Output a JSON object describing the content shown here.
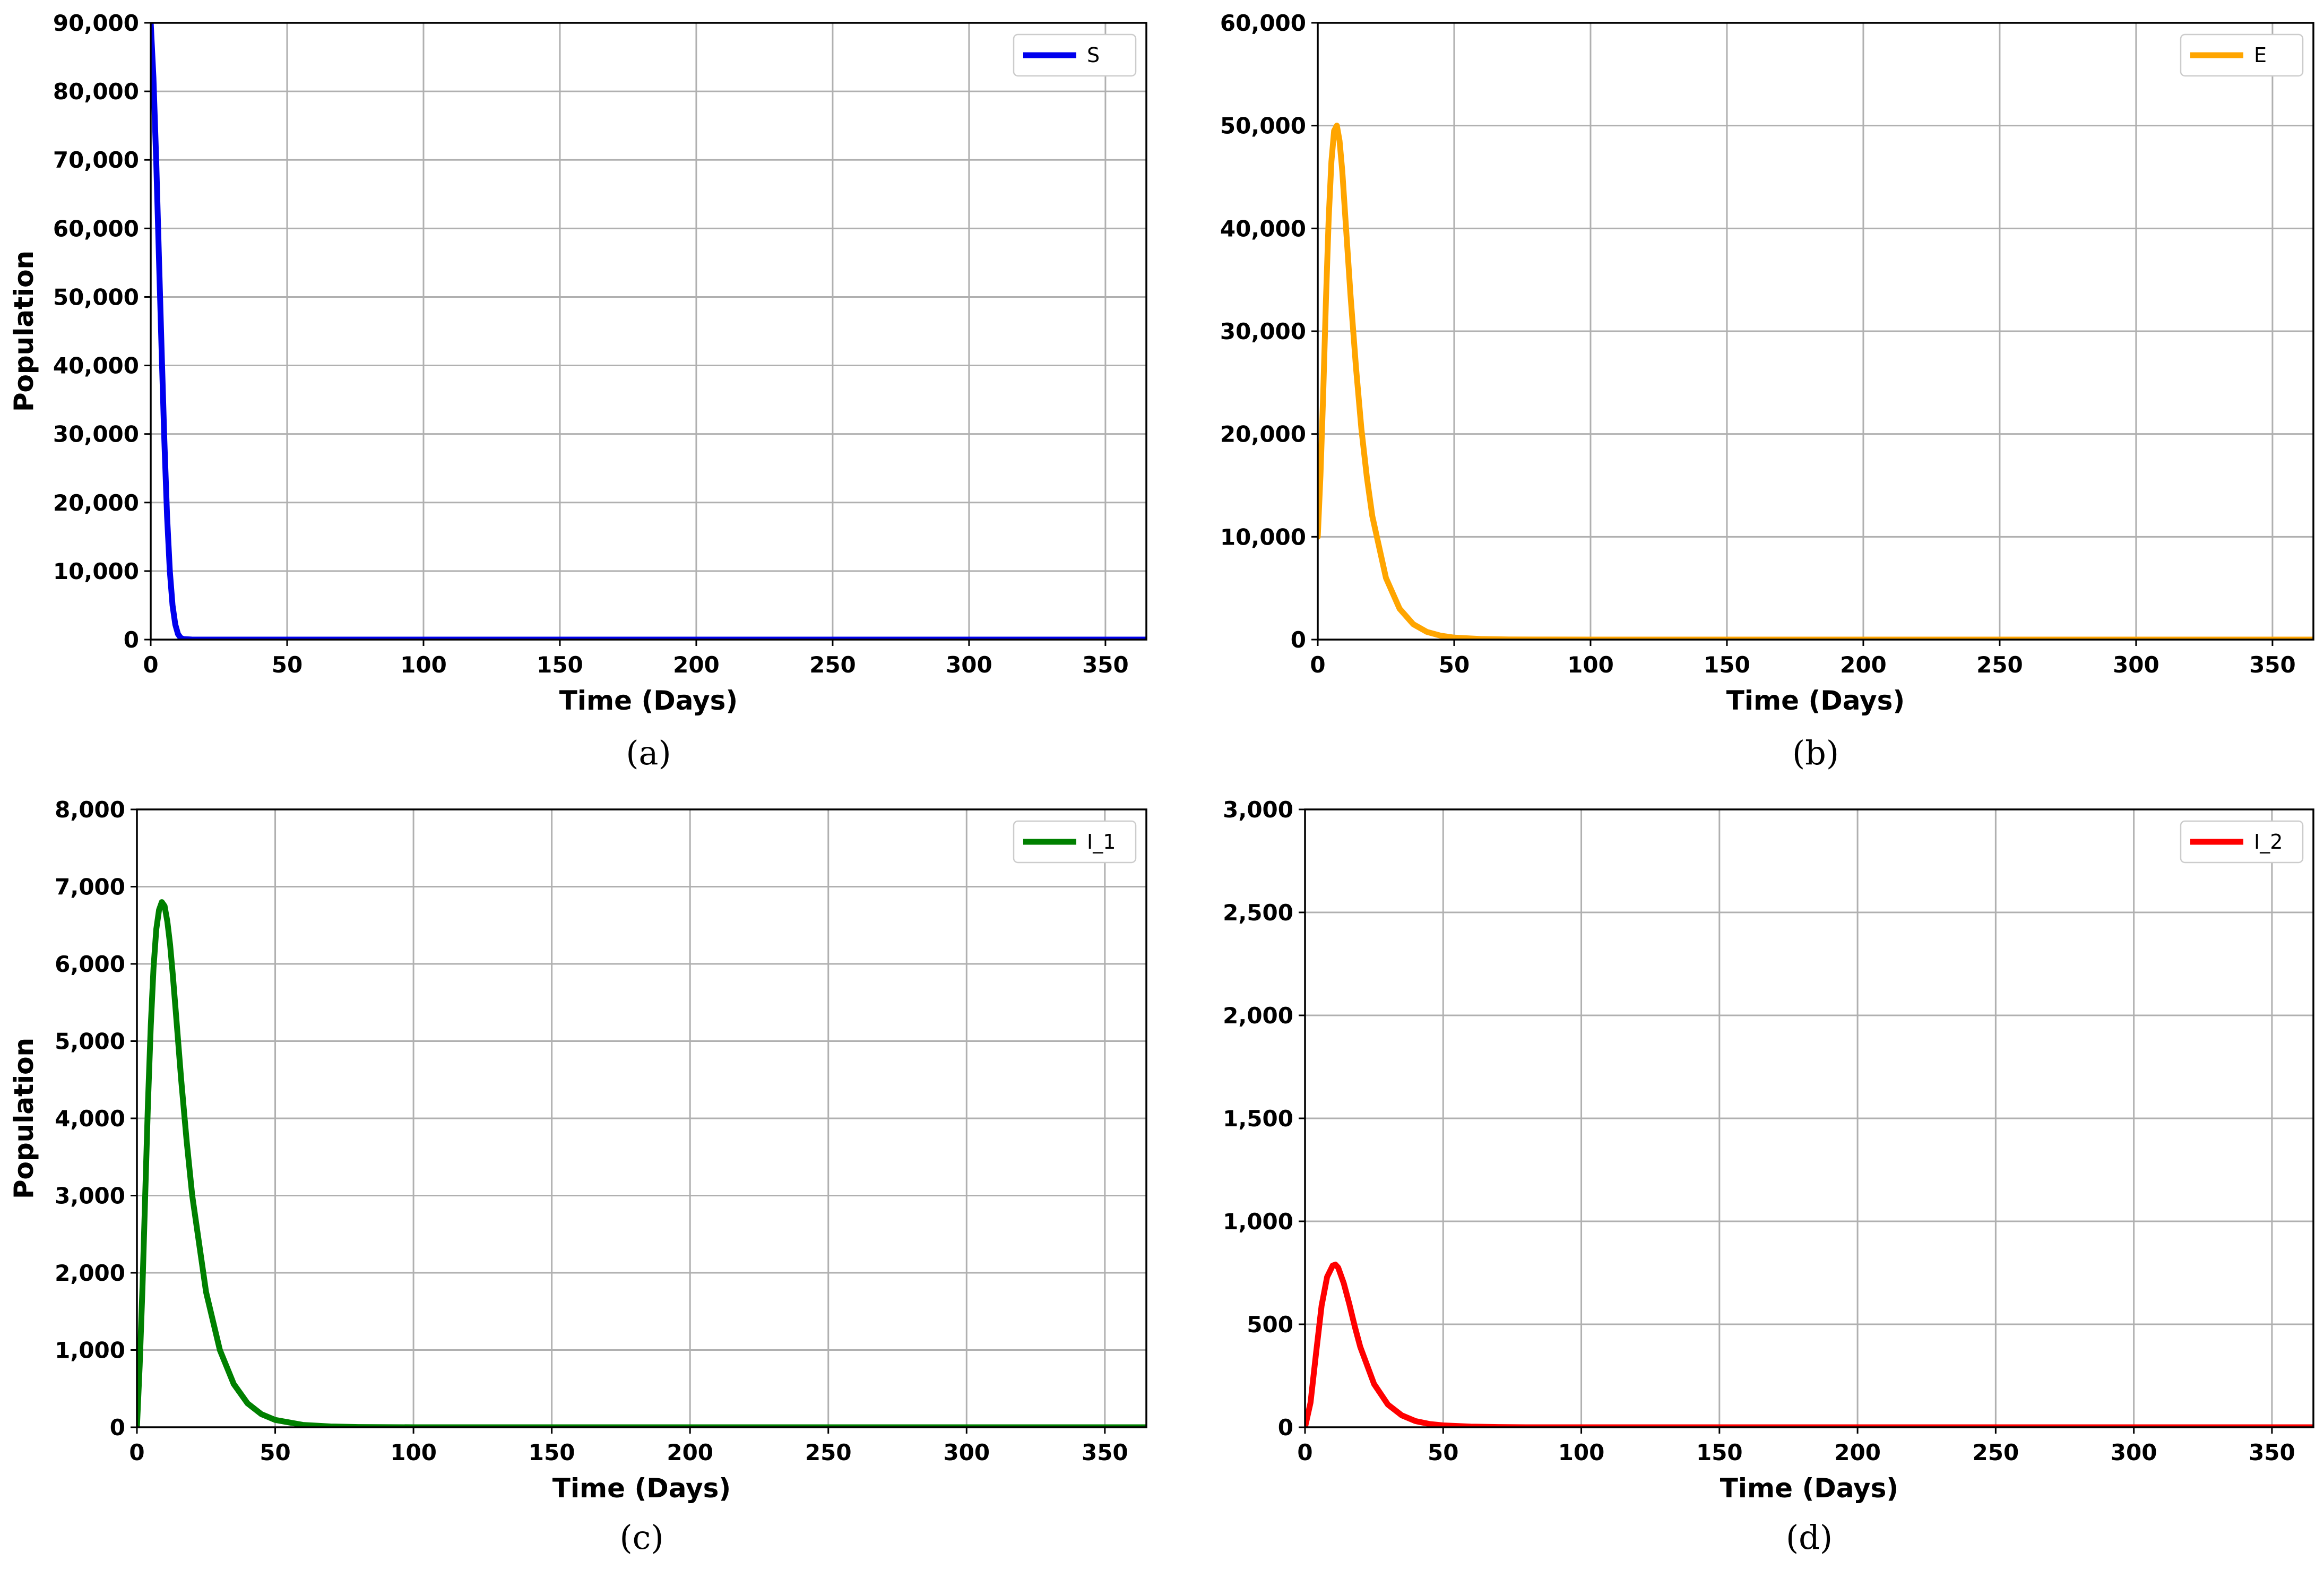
{
  "chart_data": [
    {
      "type": "line",
      "panel_label": "(a)",
      "xlabel": "Time (Days)",
      "ylabel": "Population",
      "xlim": [
        0,
        365
      ],
      "ylim": [
        0,
        90000
      ],
      "xticks": [
        0,
        50,
        100,
        150,
        200,
        250,
        300,
        350
      ],
      "xtick_labels": [
        "0",
        "50",
        "100",
        "150",
        "200",
        "250",
        "300",
        "350"
      ],
      "yticks": [
        0,
        10000,
        20000,
        30000,
        40000,
        50000,
        60000,
        70000,
        80000,
        90000
      ],
      "ytick_labels": [
        "0",
        "10,000",
        "20,000",
        "30,000",
        "40,000",
        "50,000",
        "60,000",
        "70,000",
        "80,000",
        "90,000"
      ],
      "grid": true,
      "legend_position": "top-right",
      "series": [
        {
          "name": "S",
          "color": "#0000ee",
          "x": [
            0,
            1,
            2,
            3,
            4,
            5,
            6,
            7,
            8,
            9,
            10,
            11,
            12,
            15,
            20,
            30,
            50,
            100,
            200,
            300,
            365
          ],
          "y": [
            90000,
            82000,
            70000,
            56000,
            42000,
            29000,
            18000,
            10000,
            5000,
            2200,
            800,
            250,
            80,
            10,
            0,
            0,
            0,
            0,
            0,
            0,
            0
          ]
        }
      ]
    },
    {
      "type": "line",
      "panel_label": "(b)",
      "xlabel": "Time (Days)",
      "ylabel": "Population",
      "xlim": [
        0,
        365
      ],
      "ylim": [
        0,
        60000
      ],
      "xticks": [
        0,
        50,
        100,
        150,
        200,
        250,
        300,
        350
      ],
      "xtick_labels": [
        "0",
        "50",
        "100",
        "150",
        "200",
        "250",
        "300",
        "350"
      ],
      "yticks": [
        0,
        10000,
        20000,
        30000,
        40000,
        50000,
        60000
      ],
      "ytick_labels": [
        "0",
        "10,000",
        "20,000",
        "30,000",
        "40,000",
        "50,000",
        "60,000"
      ],
      "grid": true,
      "legend_position": "top-right",
      "series": [
        {
          "name": "E",
          "color": "#ffa500",
          "x": [
            0,
            1,
            2,
            3,
            4,
            5,
            6,
            7,
            8,
            9,
            10,
            12,
            14,
            16,
            18,
            20,
            25,
            30,
            35,
            40,
            45,
            50,
            60,
            70,
            80,
            100,
            150,
            200,
            300,
            365
          ],
          "y": [
            10000,
            16000,
            24000,
            33000,
            41000,
            46500,
            49500,
            50000,
            48500,
            45500,
            41500,
            33500,
            26500,
            20500,
            15800,
            12000,
            6000,
            3000,
            1500,
            750,
            380,
            190,
            50,
            15,
            5,
            0,
            0,
            0,
            0,
            0
          ]
        }
      ]
    },
    {
      "type": "line",
      "panel_label": "(c)",
      "xlabel": "Time (Days)",
      "ylabel": "Population",
      "xlim": [
        0,
        365
      ],
      "ylim": [
        0,
        8000
      ],
      "xticks": [
        0,
        50,
        100,
        150,
        200,
        250,
        300,
        350
      ],
      "xtick_labels": [
        "0",
        "50",
        "100",
        "150",
        "200",
        "250",
        "300",
        "350"
      ],
      "yticks": [
        0,
        1000,
        2000,
        3000,
        4000,
        5000,
        6000,
        7000,
        8000
      ],
      "ytick_labels": [
        "0",
        "1,000",
        "2,000",
        "3,000",
        "4,000",
        "5,000",
        "6,000",
        "7,000",
        "8,000"
      ],
      "grid": true,
      "legend_position": "top-right",
      "series": [
        {
          "name": "I_1",
          "color": "#008000",
          "x": [
            0,
            1,
            2,
            3,
            4,
            5,
            6,
            7,
            8,
            9,
            10,
            11,
            12,
            13,
            14,
            16,
            18,
            20,
            25,
            30,
            35,
            40,
            45,
            50,
            60,
            70,
            80,
            100,
            150,
            200,
            300,
            365
          ],
          "y": [
            0,
            800,
            1800,
            3000,
            4200,
            5200,
            5950,
            6450,
            6700,
            6800,
            6750,
            6550,
            6250,
            5850,
            5400,
            4500,
            3700,
            3000,
            1750,
            1000,
            560,
            310,
            170,
            95,
            30,
            10,
            3,
            0,
            0,
            0,
            0,
            0
          ]
        }
      ]
    },
    {
      "type": "line",
      "panel_label": "(d)",
      "xlabel": "Time (Days)",
      "ylabel": "Population",
      "xlim": [
        0,
        365
      ],
      "ylim": [
        0,
        3000
      ],
      "xticks": [
        0,
        50,
        100,
        150,
        200,
        250,
        300,
        350
      ],
      "xtick_labels": [
        "0",
        "50",
        "100",
        "150",
        "200",
        "250",
        "300",
        "350"
      ],
      "yticks": [
        0,
        500,
        1000,
        1500,
        2000,
        2500,
        3000
      ],
      "ytick_labels": [
        "0",
        "500",
        "1,000",
        "1,500",
        "2,000",
        "2,500",
        "3,000"
      ],
      "grid": true,
      "legend_position": "top-right",
      "series": [
        {
          "name": "I_2",
          "color": "#ff0000",
          "x": [
            0,
            2,
            4,
            6,
            8,
            10,
            11,
            12,
            14,
            16,
            18,
            20,
            25,
            30,
            35,
            40,
            45,
            50,
            60,
            70,
            80,
            100,
            150,
            200,
            300,
            365
          ],
          "y": [
            0,
            120,
            360,
            590,
            730,
            785,
            790,
            775,
            700,
            600,
            490,
            390,
            210,
            110,
            58,
            30,
            16,
            9,
            3,
            1,
            0,
            0,
            0,
            0,
            0,
            0
          ]
        }
      ]
    }
  ]
}
